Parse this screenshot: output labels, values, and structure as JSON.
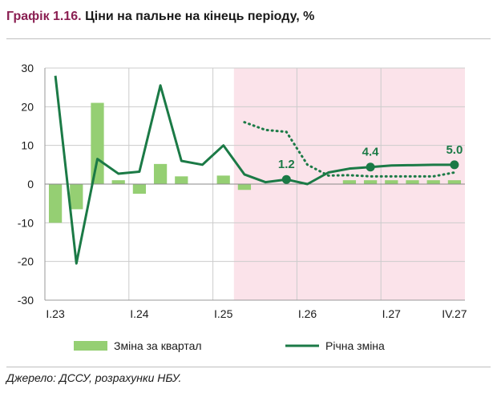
{
  "title": {
    "number": "Графік 1.16.",
    "text": "Ціни на пальне на кінець періоду, %"
  },
  "source": "Джерело: ДССУ, розрахунки НБУ.",
  "colors": {
    "bars": "#95cf73",
    "line": "#1b7a46",
    "forecast_shade": "#fbe3ea",
    "grid": "#cccccc"
  },
  "chart_data": {
    "type": "bar+line",
    "x_ticks": [
      "I.23",
      "I.24",
      "I.25",
      "I.26",
      "I.27",
      "IV.27"
    ],
    "ylim": [
      -30,
      30
    ],
    "y_ticks": [
      "30",
      "20",
      "10",
      "0",
      "-10",
      "-20",
      "-30"
    ],
    "forecast_start": "I.25",
    "x": [
      "I.23",
      "II.23",
      "III.23",
      "IV.23",
      "I.24",
      "II.24",
      "III.24",
      "IV.24",
      "I.25",
      "II.25",
      "III.25",
      "IV.25",
      "I.26",
      "II.26",
      "III.26",
      "IV.26",
      "I.27",
      "II.27",
      "III.27",
      "IV.27"
    ],
    "series": [
      {
        "name": "Зміна за квартал",
        "type": "bar",
        "values": [
          -10,
          -6.5,
          21,
          1,
          -2.5,
          5.2,
          2,
          0,
          2.2,
          -1.5,
          0,
          0,
          0,
          0,
          1,
          1,
          1,
          1,
          1,
          1
        ]
      },
      {
        "name": "Річна зміна",
        "type": "line",
        "values": [
          28,
          -20.5,
          6.5,
          2.7,
          3.2,
          25.5,
          6,
          5,
          10,
          2.5,
          0.5,
          1.2,
          0,
          3,
          4,
          4.4,
          4.8,
          4.9,
          5,
          5
        ]
      },
      {
        "name": "",
        "type": "line-dotted",
        "values": [
          null,
          null,
          null,
          null,
          null,
          null,
          null,
          null,
          null,
          16,
          14,
          13.5,
          5,
          2.2,
          2.3,
          2,
          2,
          2,
          2,
          3
        ]
      }
    ],
    "annotations": [
      "1.2",
      "4.4",
      "5.0"
    ]
  },
  "legend": {
    "bars": "Зміна за квартал",
    "line": "Річна зміна"
  }
}
